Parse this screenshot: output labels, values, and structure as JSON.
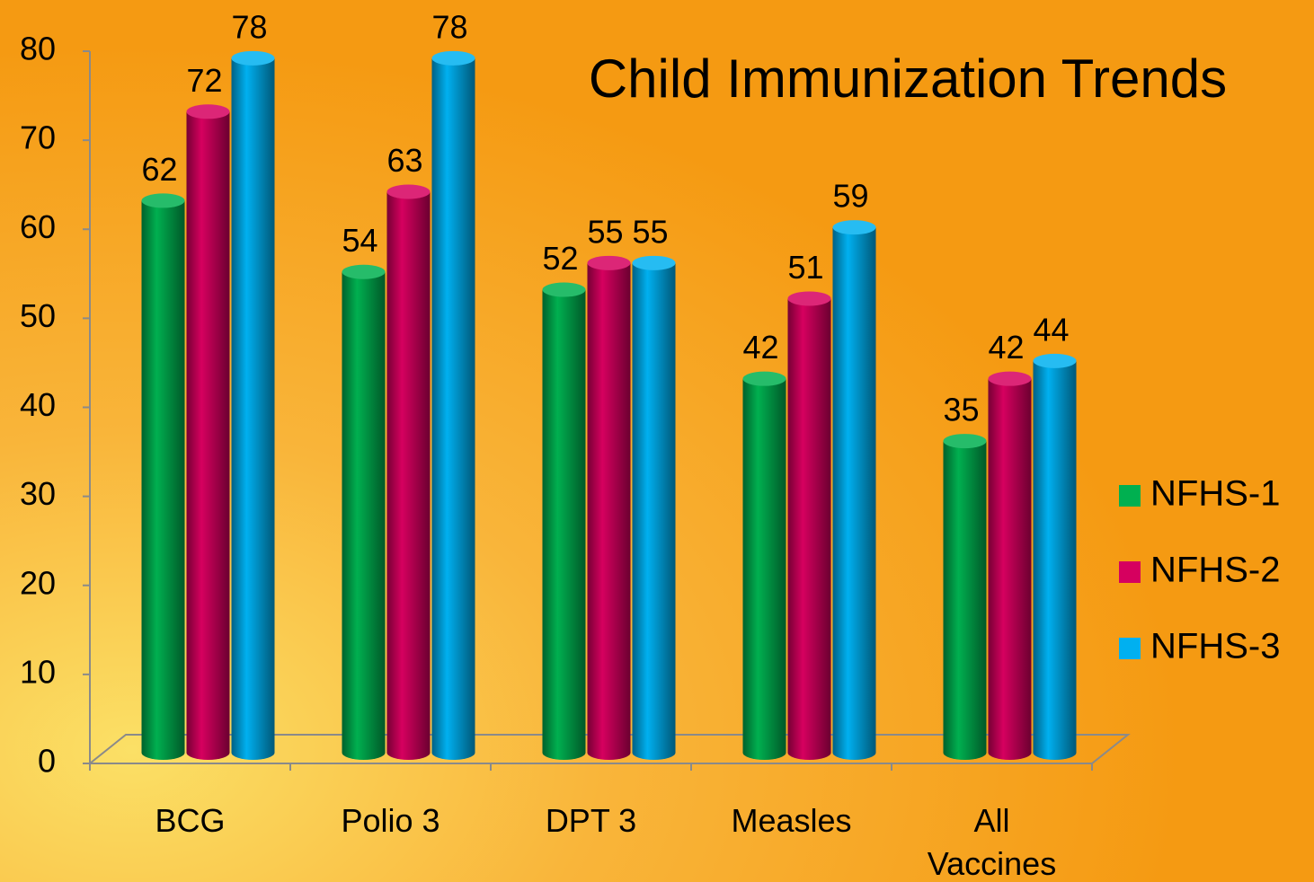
{
  "chart_data": {
    "type": "bar",
    "title": "Child Immunization Trends",
    "categories": [
      "BCG",
      "Polio 3",
      "DPT 3",
      "Measles",
      "All Vaccines"
    ],
    "series": [
      {
        "name": "NFHS-1",
        "color": "#00b050",
        "values": [
          62,
          54,
          52,
          42,
          35
        ]
      },
      {
        "name": "NFHS-2",
        "color": "#d6005f",
        "values": [
          72,
          63,
          55,
          51,
          42
        ]
      },
      {
        "name": "NFHS-3",
        "color": "#00b0f0",
        "values": [
          78,
          78,
          55,
          59,
          44
        ]
      }
    ],
    "ylim": [
      0,
      80
    ],
    "yticks": [
      0,
      10,
      20,
      30,
      40,
      50,
      60,
      70,
      80
    ],
    "legend": "right"
  }
}
